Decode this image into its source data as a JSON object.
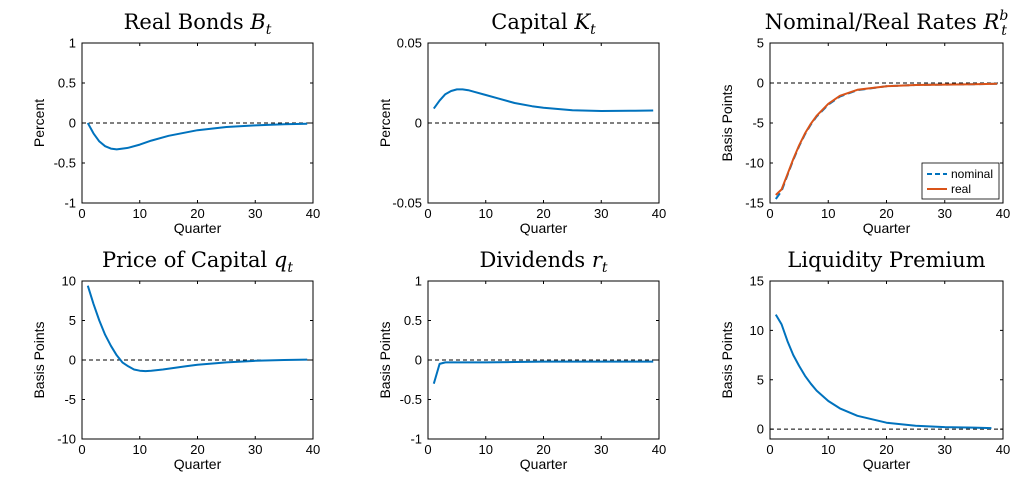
{
  "colors": {
    "blue": "#0072BD",
    "orange": "#D95319",
    "axis": "#000000",
    "zero_line": "#000000"
  },
  "chart_data": [
    {
      "type": "line",
      "title": "Real Bonds ",
      "title_var": "B",
      "title_sub": "t",
      "title_sup": "",
      "xlabel": "Quarter",
      "ylabel": "Percent",
      "xlim": [
        0,
        40
      ],
      "ylim": [
        -1,
        1
      ],
      "xticks": [
        0,
        10,
        20,
        30,
        40
      ],
      "yticks": [
        -1,
        -0.5,
        0,
        0.5,
        1
      ],
      "ytick_labels": [
        "-1",
        "-0.5",
        "0",
        "0.5",
        "1"
      ],
      "zero_line": true,
      "legend": null,
      "series": [
        {
          "color": "#0072BD",
          "dashed": false,
          "x": [
            1,
            2,
            3,
            4,
            5,
            6,
            7,
            8,
            10,
            12,
            15,
            20,
            25,
            30,
            35,
            39
          ],
          "y": [
            0,
            -0.13,
            -0.23,
            -0.29,
            -0.32,
            -0.33,
            -0.32,
            -0.31,
            -0.27,
            -0.22,
            -0.16,
            -0.09,
            -0.05,
            -0.03,
            -0.015,
            -0.01
          ]
        }
      ]
    },
    {
      "type": "line",
      "title": "Capital ",
      "title_var": "K",
      "title_sub": "t",
      "title_sup": "",
      "xlabel": "Quarter",
      "ylabel": "Percent",
      "xlim": [
        0,
        40
      ],
      "ylim": [
        -0.05,
        0.05
      ],
      "xticks": [
        0,
        10,
        20,
        30,
        40
      ],
      "yticks": [
        -0.05,
        0,
        0.05
      ],
      "ytick_labels": [
        "-0.05",
        "0",
        "0.05"
      ],
      "zero_line": true,
      "legend": null,
      "series": [
        {
          "color": "#0072BD",
          "dashed": false,
          "x": [
            1,
            2,
            3,
            4,
            5,
            6,
            7,
            8,
            10,
            12,
            15,
            18,
            20,
            25,
            30,
            35,
            39
          ],
          "y": [
            0.009,
            0.014,
            0.018,
            0.02,
            0.021,
            0.021,
            0.0205,
            0.0195,
            0.0175,
            0.0155,
            0.0125,
            0.0105,
            0.0095,
            0.008,
            0.0075,
            0.0076,
            0.0078
          ]
        }
      ]
    },
    {
      "type": "line",
      "title": "Nominal/Real Rates ",
      "title_var": "R",
      "title_sub": "t",
      "title_sup": "b",
      "xlabel": "Quarter",
      "ylabel": "Basis Points",
      "xlim": [
        0,
        40
      ],
      "ylim": [
        -15,
        5
      ],
      "xticks": [
        0,
        10,
        20,
        30,
        40
      ],
      "yticks": [
        -15,
        -10,
        -5,
        0,
        5
      ],
      "ytick_labels": [
        "-15",
        "-10",
        "-5",
        "0",
        "5"
      ],
      "zero_line": true,
      "legend": {
        "position": "bottom-right",
        "entries": [
          "nominal",
          "real"
        ]
      },
      "series": [
        {
          "name": "nominal",
          "color": "#0072BD",
          "dashed": true,
          "x": [
            1,
            2,
            3,
            4,
            5,
            6,
            7,
            8,
            10,
            12,
            15,
            20,
            25,
            30,
            35,
            39
          ],
          "y": [
            -14.5,
            -13.5,
            -11.5,
            -9.6,
            -7.9,
            -6.4,
            -5.2,
            -4.2,
            -2.7,
            -1.7,
            -0.9,
            -0.4,
            -0.25,
            -0.2,
            -0.15,
            -0.1
          ]
        },
        {
          "name": "real",
          "color": "#D95319",
          "dashed": false,
          "x": [
            1,
            2,
            3,
            4,
            5,
            6,
            7,
            8,
            10,
            12,
            15,
            20,
            25,
            30,
            35,
            39
          ],
          "y": [
            -14,
            -13.3,
            -11.4,
            -9.5,
            -7.8,
            -6.3,
            -5.1,
            -4.1,
            -2.6,
            -1.6,
            -0.85,
            -0.4,
            -0.25,
            -0.2,
            -0.15,
            -0.1
          ]
        }
      ]
    },
    {
      "type": "line",
      "title": "Price of Capital ",
      "title_var": "q",
      "title_sub": "t",
      "title_sup": "",
      "xlabel": "Quarter",
      "ylabel": "Basis Points",
      "xlim": [
        0,
        40
      ],
      "ylim": [
        -10,
        10
      ],
      "xticks": [
        0,
        10,
        20,
        30,
        40
      ],
      "yticks": [
        -10,
        -5,
        0,
        5,
        10
      ],
      "ytick_labels": [
        "-10",
        "-5",
        "0",
        "5",
        "10"
      ],
      "zero_line": true,
      "legend": null,
      "series": [
        {
          "color": "#0072BD",
          "dashed": false,
          "x": [
            1,
            2,
            3,
            4,
            5,
            6,
            7,
            8,
            9,
            10,
            11,
            12,
            14,
            16,
            18,
            20,
            25,
            30,
            35,
            39
          ],
          "y": [
            9.4,
            7.1,
            5.0,
            3.2,
            1.8,
            0.6,
            -0.3,
            -0.8,
            -1.2,
            -1.35,
            -1.4,
            -1.35,
            -1.2,
            -1.0,
            -0.8,
            -0.6,
            -0.3,
            -0.1,
            0.0,
            0.05
          ]
        }
      ]
    },
    {
      "type": "line",
      "title": "Dividends ",
      "title_var": "r",
      "title_sub": "t",
      "title_sup": "",
      "xlabel": "Quarter",
      "ylabel": "Basis Points",
      "xlim": [
        0,
        40
      ],
      "ylim": [
        -1,
        1
      ],
      "xticks": [
        0,
        10,
        20,
        30,
        40
      ],
      "yticks": [
        -1,
        -0.5,
        0,
        0.5,
        1
      ],
      "ytick_labels": [
        "-1",
        "-0.5",
        "0",
        "0.5",
        "1"
      ],
      "zero_line": true,
      "legend": null,
      "series": [
        {
          "color": "#0072BD",
          "dashed": false,
          "x": [
            1,
            2,
            3,
            4,
            6,
            8,
            10,
            15,
            20,
            25,
            30,
            35,
            39
          ],
          "y": [
            -0.3,
            -0.05,
            -0.03,
            -0.03,
            -0.03,
            -0.03,
            -0.03,
            -0.025,
            -0.02,
            -0.02,
            -0.02,
            -0.02,
            -0.02
          ]
        }
      ]
    },
    {
      "type": "line",
      "title": "Liquidity Premium",
      "title_var": "",
      "title_sub": "",
      "title_sup": "",
      "xlabel": "Quarter",
      "ylabel": "Basis Points",
      "xlim": [
        0,
        40
      ],
      "ylim": [
        -1,
        15
      ],
      "xticks": [
        0,
        10,
        20,
        30,
        40
      ],
      "yticks": [
        0,
        5,
        10,
        15
      ],
      "ytick_labels": [
        "0",
        "5",
        "10",
        "15"
      ],
      "zero_line": true,
      "legend": null,
      "series": [
        {
          "color": "#0072BD",
          "dashed": false,
          "x": [
            1,
            2,
            3,
            4,
            5,
            6,
            7,
            8,
            10,
            12,
            15,
            20,
            25,
            30,
            35,
            38
          ],
          "y": [
            11.6,
            10.6,
            8.9,
            7.5,
            6.4,
            5.4,
            4.6,
            3.9,
            2.85,
            2.1,
            1.35,
            0.65,
            0.35,
            0.2,
            0.15,
            0.1
          ]
        }
      ]
    }
  ]
}
